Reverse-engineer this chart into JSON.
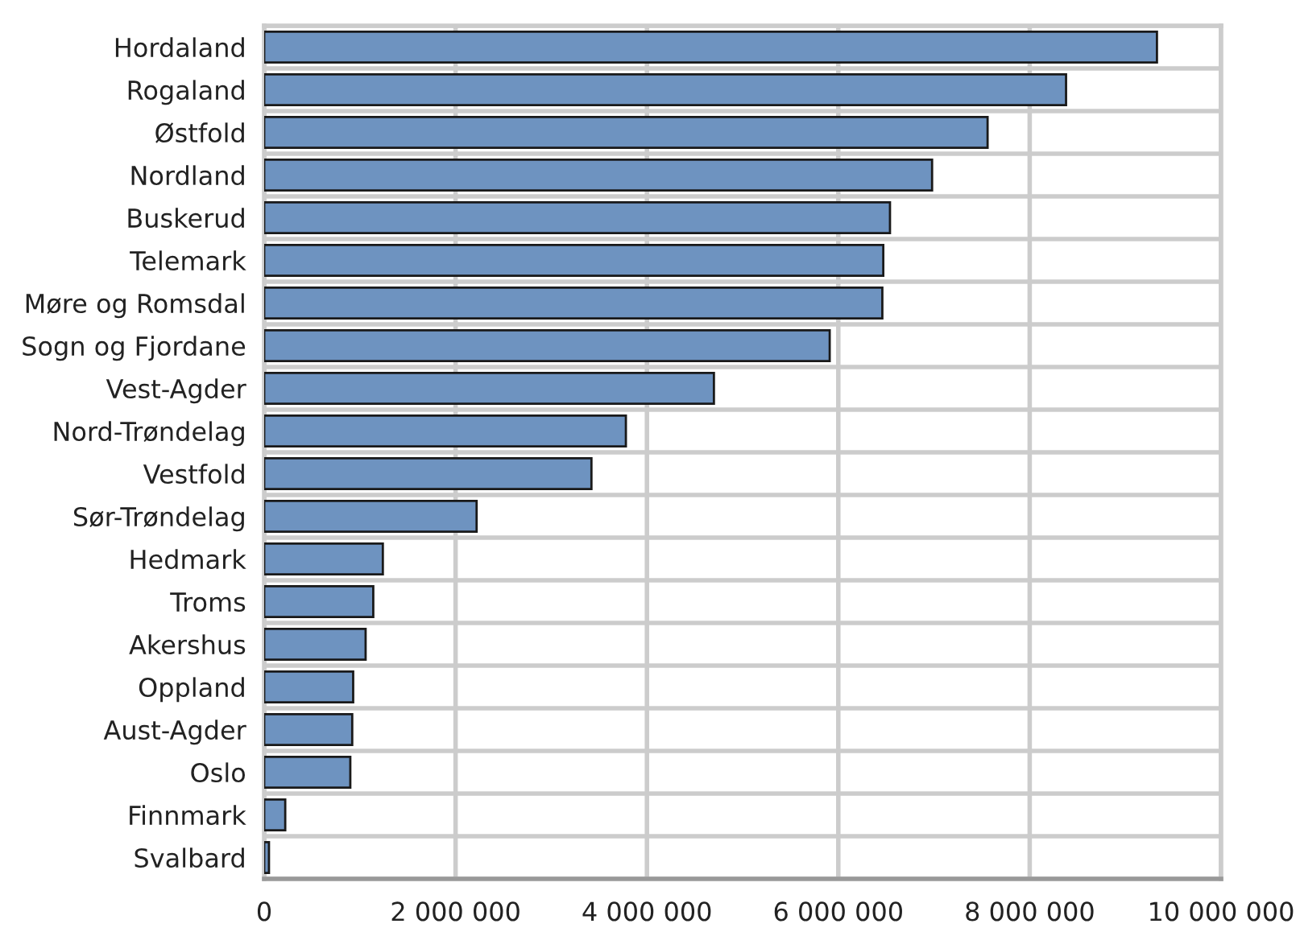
{
  "chart_data": {
    "type": "bar",
    "orientation": "horizontal",
    "categories": [
      "Hordaland",
      "Rogaland",
      "Østfold",
      "Nordland",
      "Buskerud",
      "Telemark",
      "Møre og Romsdal",
      "Sogn og Fjordane",
      "Vest-Agder",
      "Nord-Trøndelag",
      "Vestfold",
      "Sør-Trøndelag",
      "Hedmark",
      "Troms",
      "Akershus",
      "Oppland",
      "Aust-Agder",
      "Oslo",
      "Finnmark",
      "Svalbard"
    ],
    "values": [
      9330000,
      8380000,
      7560000,
      6980000,
      6540000,
      6470000,
      6460000,
      5910000,
      4700000,
      3780000,
      3420000,
      2220000,
      1240000,
      1140000,
      1060000,
      930000,
      920000,
      900000,
      220000,
      50000
    ],
    "color": "#6e93c0",
    "xlim": [
      0,
      10000000
    ],
    "xticks": [
      {
        "value": 0,
        "label": "0"
      },
      {
        "value": 2000000,
        "label": "2 000 000"
      },
      {
        "value": 4000000,
        "label": "4 000 000"
      },
      {
        "value": 6000000,
        "label": "6 000 000"
      },
      {
        "value": 8000000,
        "label": "8 000 000"
      },
      {
        "value": 10000000,
        "label": "10 000 000"
      }
    ],
    "grid": true
  }
}
